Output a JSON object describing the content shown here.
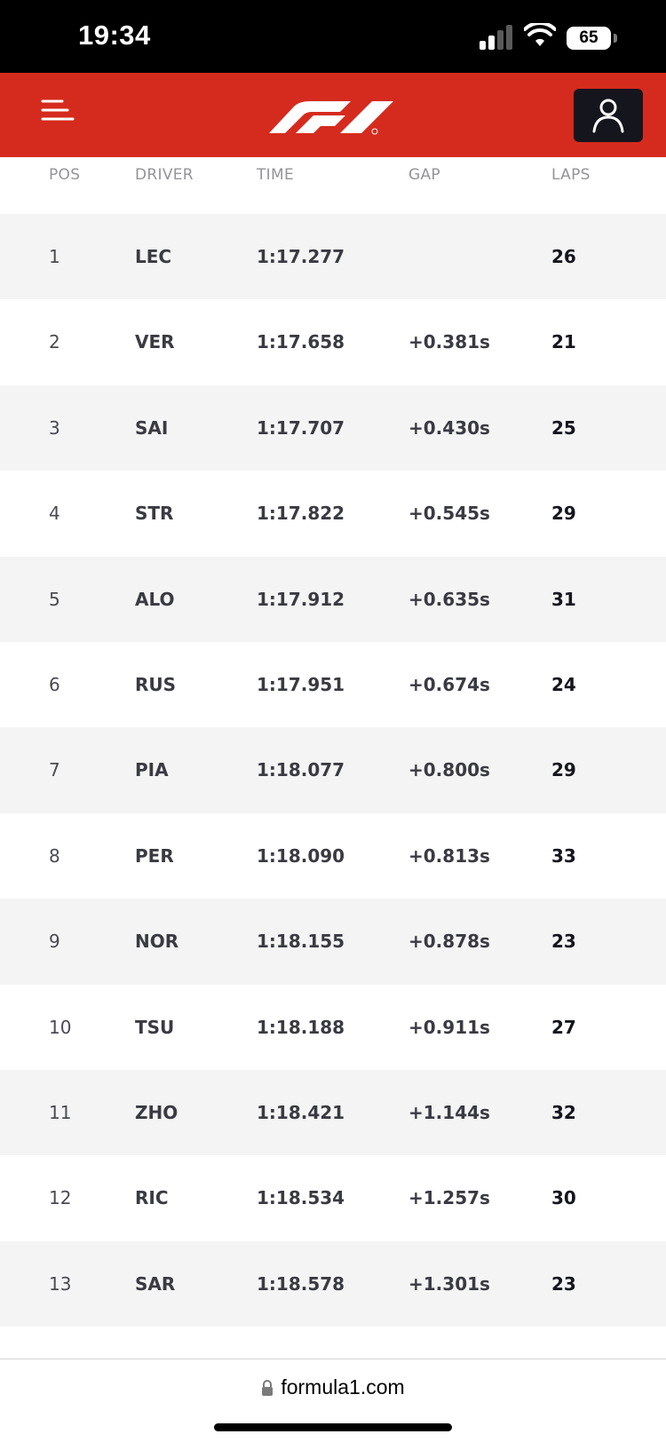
{
  "status_bar": {
    "time": "19:34",
    "battery": "65"
  },
  "header": {
    "logo_icon": "f1-logo-icon",
    "menu_icon": "menu-icon",
    "account_icon": "user-icon"
  },
  "table": {
    "columns": [
      "POS",
      "DRIVER",
      "TIME",
      "GAP",
      "LAPS"
    ],
    "rows": [
      {
        "pos": "1",
        "driver": "LEC",
        "time": "1:17.277",
        "gap": "",
        "laps": "26"
      },
      {
        "pos": "2",
        "driver": "VER",
        "time": "1:17.658",
        "gap": "+0.381s",
        "laps": "21"
      },
      {
        "pos": "3",
        "driver": "SAI",
        "time": "1:17.707",
        "gap": "+0.430s",
        "laps": "25"
      },
      {
        "pos": "4",
        "driver": "STR",
        "time": "1:17.822",
        "gap": "+0.545s",
        "laps": "29"
      },
      {
        "pos": "5",
        "driver": "ALO",
        "time": "1:17.912",
        "gap": "+0.635s",
        "laps": "31"
      },
      {
        "pos": "6",
        "driver": "RUS",
        "time": "1:17.951",
        "gap": "+0.674s",
        "laps": "24"
      },
      {
        "pos": "7",
        "driver": "PIA",
        "time": "1:18.077",
        "gap": "+0.800s",
        "laps": "29"
      },
      {
        "pos": "8",
        "driver": "PER",
        "time": "1:18.090",
        "gap": "+0.813s",
        "laps": "33"
      },
      {
        "pos": "9",
        "driver": "NOR",
        "time": "1:18.155",
        "gap": "+0.878s",
        "laps": "23"
      },
      {
        "pos": "10",
        "driver": "TSU",
        "time": "1:18.188",
        "gap": "+0.911s",
        "laps": "27"
      },
      {
        "pos": "11",
        "driver": "ZHO",
        "time": "1:18.421",
        "gap": "+1.144s",
        "laps": "32"
      },
      {
        "pos": "12",
        "driver": "RIC",
        "time": "1:18.534",
        "gap": "+1.257s",
        "laps": "30"
      },
      {
        "pos": "13",
        "driver": "SAR",
        "time": "1:18.578",
        "gap": "+1.301s",
        "laps": "23"
      }
    ]
  },
  "browser": {
    "url": "formula1.com"
  },
  "colors": {
    "brand_red": "#d52b1e",
    "dark": "#15151e",
    "row_alt": "#f4f4f4"
  }
}
